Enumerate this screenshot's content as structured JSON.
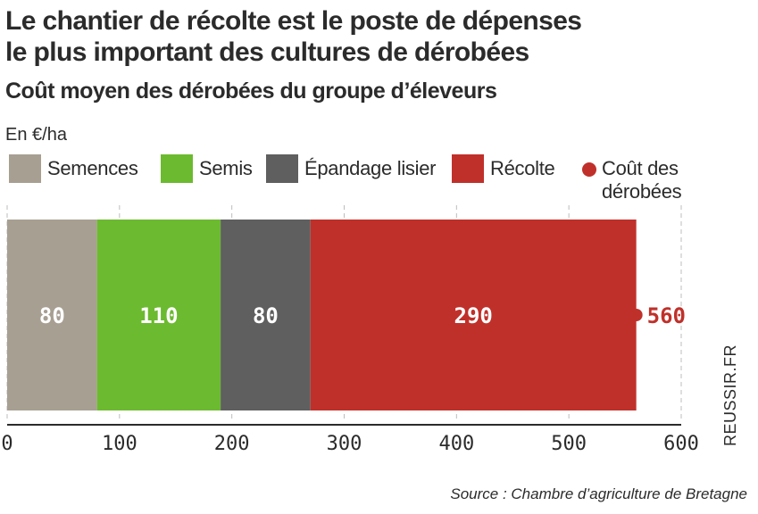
{
  "title_line1": "Le chantier de récolte est le poste de dépenses",
  "title_line2": "le plus important des cultures de dérobées",
  "subtitle": "Coût moyen des dérobées du groupe d’éleveurs",
  "unit_label": "En €/ha",
  "source": "Source : Chambre d’agriculture de Bretagne",
  "watermark": "REUSSIR.FR",
  "chart_data": {
    "type": "bar",
    "orientation": "horizontal",
    "stacked": true,
    "categories": [
      ""
    ],
    "series": [
      {
        "name": "Semences",
        "values": [
          80
        ],
        "color": "#a79f92"
      },
      {
        "name": "Semis",
        "values": [
          110
        ],
        "color": "#6cba2f"
      },
      {
        "name": "Épandage lisier",
        "values": [
          80
        ],
        "color": "#5f5f5f"
      },
      {
        "name": "Récolte",
        "values": [
          290
        ],
        "color": "#c0302a"
      }
    ],
    "total": {
      "name": "Coût des dérobées",
      "value": 560,
      "color": "#c0302a"
    },
    "x_ticks": [
      0,
      100,
      200,
      300,
      400,
      500,
      600
    ],
    "xlim": [
      0,
      600
    ],
    "grid": true,
    "legend_position": "top"
  }
}
